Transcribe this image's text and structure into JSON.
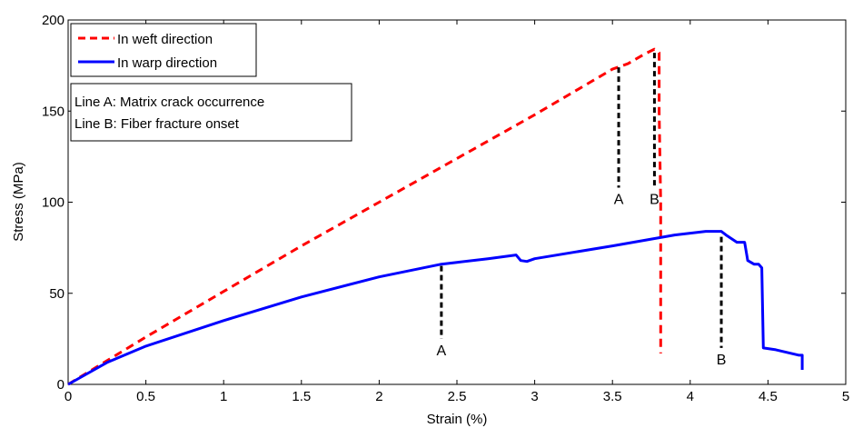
{
  "chart_data": {
    "type": "line",
    "title": "",
    "xlabel": "Strain (%)",
    "ylabel": "Stress (MPa)",
    "xlim": [
      0,
      5
    ],
    "ylim": [
      0,
      200
    ],
    "xticks": [
      0,
      0.5,
      1,
      1.5,
      2,
      2.5,
      3,
      3.5,
      4,
      4.5,
      5
    ],
    "xtick_labels": [
      "0",
      "0.5",
      "1",
      "1.5",
      "2",
      "2.5",
      "3",
      "3.5",
      "4",
      "4.5",
      "5"
    ],
    "yticks": [
      0,
      50,
      100,
      150,
      200
    ],
    "ytick_labels": [
      "0",
      "50",
      "100",
      "150",
      "200"
    ],
    "grid": false,
    "legend_position": "top-left",
    "series": [
      {
        "name": "In weft direction",
        "color": "#ff0000",
        "line_style": "dashed",
        "points": [
          [
            0,
            0
          ],
          [
            0.25,
            13
          ],
          [
            0.5,
            26
          ],
          [
            1.0,
            51
          ],
          [
            1.5,
            76
          ],
          [
            2.0,
            100
          ],
          [
            2.5,
            124
          ],
          [
            3.0,
            148
          ],
          [
            3.5,
            173
          ],
          [
            3.6,
            176
          ],
          [
            3.7,
            181
          ],
          [
            3.77,
            184
          ],
          [
            3.8,
            182
          ],
          [
            3.8,
            150
          ],
          [
            3.81,
            100
          ],
          [
            3.81,
            50
          ],
          [
            3.81,
            17
          ]
        ]
      },
      {
        "name": "In warp direction",
        "color": "#0000ff",
        "line_style": "solid",
        "points": [
          [
            0,
            0
          ],
          [
            0.25,
            12
          ],
          [
            0.5,
            21
          ],
          [
            1.0,
            35
          ],
          [
            1.5,
            48
          ],
          [
            2.0,
            59
          ],
          [
            2.4,
            66
          ],
          [
            2.5,
            67
          ],
          [
            2.7,
            69
          ],
          [
            2.88,
            71
          ],
          [
            2.91,
            68
          ],
          [
            2.95,
            67.5
          ],
          [
            3.0,
            69
          ],
          [
            3.5,
            76
          ],
          [
            3.9,
            82
          ],
          [
            4.0,
            83
          ],
          [
            4.1,
            84
          ],
          [
            4.2,
            84
          ],
          [
            4.23,
            82
          ],
          [
            4.3,
            78
          ],
          [
            4.35,
            78
          ],
          [
            4.37,
            68
          ],
          [
            4.41,
            66
          ],
          [
            4.44,
            66
          ],
          [
            4.46,
            64
          ],
          [
            4.47,
            20
          ],
          [
            4.55,
            19
          ],
          [
            4.6,
            18
          ],
          [
            4.65,
            17
          ],
          [
            4.7,
            16
          ],
          [
            4.72,
            16
          ],
          [
            4.72,
            8
          ]
        ]
      }
    ],
    "markers": [
      {
        "label": "A",
        "color": "#000000",
        "x": 2.4,
        "y_from": 65,
        "y_to": 25
      },
      {
        "label": "A",
        "color": "#000000",
        "x": 3.54,
        "y_from": 174,
        "y_to": 108
      },
      {
        "label": "B",
        "color": "#000000",
        "x": 3.77,
        "y_from": 182,
        "y_to": 108
      },
      {
        "label": "B",
        "color": "#000000",
        "x": 4.2,
        "y_from": 81,
        "y_to": 20
      }
    ],
    "annotation": {
      "lines": [
        "Line A: Matrix crack occurrence",
        "Line B: Fiber fracture onset"
      ]
    }
  }
}
